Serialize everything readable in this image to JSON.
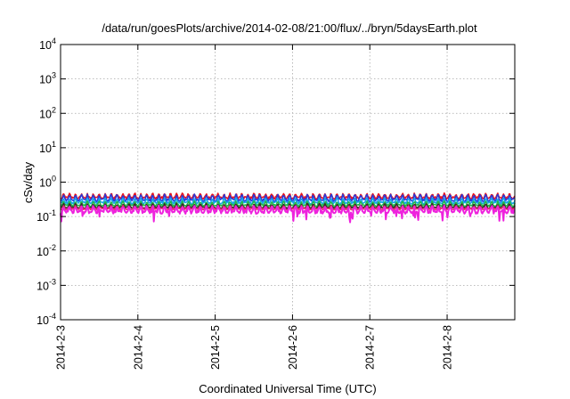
{
  "chart_data": {
    "type": "line",
    "title": "/data/run/goesPlots/archive/2014-02-08/21:00/flux/../bryn/5daysEarth.plot",
    "xlabel": "Coordinated Universal Time (UTC)",
    "ylabel": "cSv/day",
    "yscale": "log",
    "ylim": [
      0.0001,
      10000
    ],
    "y_ticks": [
      {
        "base": "10",
        "exp": "-4",
        "value": 0.0001
      },
      {
        "base": "10",
        "exp": "-3",
        "value": 0.001
      },
      {
        "base": "10",
        "exp": "-2",
        "value": 0.01
      },
      {
        "base": "10",
        "exp": "-1",
        "value": 0.1
      },
      {
        "base": "10",
        "exp": "0",
        "value": 1
      },
      {
        "base": "10",
        "exp": "1",
        "value": 10
      },
      {
        "base": "10",
        "exp": "2",
        "value": 100
      },
      {
        "base": "10",
        "exp": "3",
        "value": 1000
      },
      {
        "base": "10",
        "exp": "4",
        "value": 10000
      }
    ],
    "x_ticks": [
      "2014-2-3",
      "2014-2-4",
      "2014-2-5",
      "2014-2-6",
      "2014-2-7",
      "2014-2-8"
    ],
    "xlim": [
      "2014-02-03T00:00",
      "2014-02-08T21:00"
    ],
    "grid": true,
    "series": [
      {
        "color": "#e8141e",
        "level": 0.35,
        "amp": 0.09
      },
      {
        "color": "#2a3ad8",
        "level": 0.3,
        "amp": 0.1
      },
      {
        "color": "#18a6e8",
        "level": 0.25,
        "amp": 0.07
      },
      {
        "color": "#22b84a",
        "level": 0.21,
        "amp": 0.05
      },
      {
        "color": "#3a2a2a",
        "level": 0.18,
        "amp": 0.04
      },
      {
        "color": "#e83070",
        "level": 0.165,
        "amp": 0.03
      },
      {
        "color": "#ee22dd",
        "level": 0.135,
        "amp": 0.05
      }
    ]
  }
}
